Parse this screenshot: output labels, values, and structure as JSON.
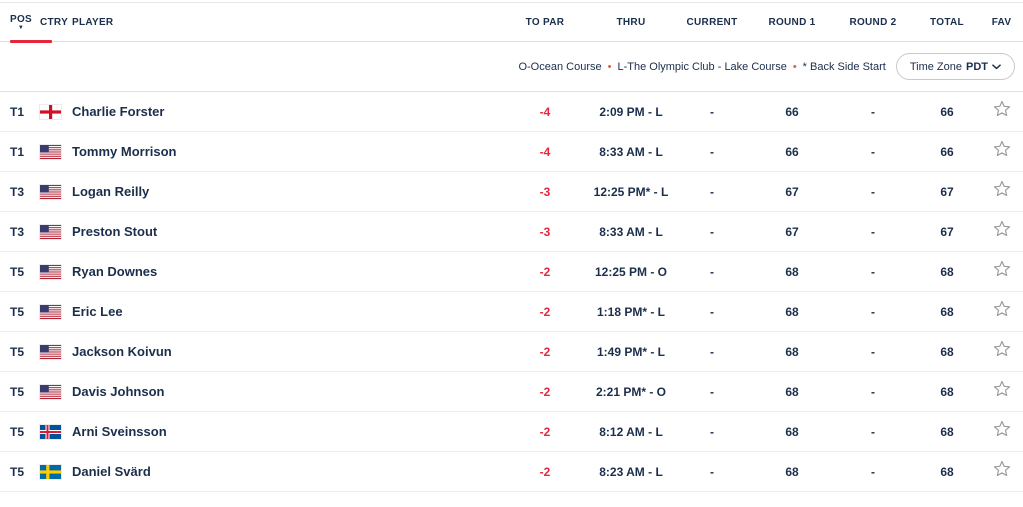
{
  "colors": {
    "navy": "#1b2e4b",
    "to_par_red": "#e8253c",
    "legend_bullet": "#d0614a",
    "star_outline": "#9b9b9b"
  },
  "header": {
    "columns": [
      "POS",
      "CTRY",
      "PLAYER",
      "TO PAR",
      "THRU",
      "CURRENT",
      "ROUND 1",
      "ROUND 2",
      "TOTAL",
      "FAV"
    ],
    "sorted_column": "POS"
  },
  "legend": {
    "items": [
      "O-Ocean Course",
      "L-The Olympic Club - Lake Course",
      "* Back Side Start"
    ],
    "timezone_label": "Time Zone",
    "timezone_value": "PDT"
  },
  "rows": [
    {
      "pos": "T1",
      "country": "ENG",
      "player": "Charlie Forster",
      "to_par": "-4",
      "thru": "2:09 PM - L",
      "current": "-",
      "round1": "66",
      "round2": "-",
      "total": "66"
    },
    {
      "pos": "T1",
      "country": "USA",
      "player": "Tommy Morrison",
      "to_par": "-4",
      "thru": "8:33 AM - L",
      "current": "-",
      "round1": "66",
      "round2": "-",
      "total": "66"
    },
    {
      "pos": "T3",
      "country": "USA",
      "player": "Logan Reilly",
      "to_par": "-3",
      "thru": "12:25 PM* - L",
      "current": "-",
      "round1": "67",
      "round2": "-",
      "total": "67"
    },
    {
      "pos": "T3",
      "country": "USA",
      "player": "Preston Stout",
      "to_par": "-3",
      "thru": "8:33 AM - L",
      "current": "-",
      "round1": "67",
      "round2": "-",
      "total": "67"
    },
    {
      "pos": "T5",
      "country": "USA",
      "player": "Ryan Downes",
      "to_par": "-2",
      "thru": "12:25 PM - O",
      "current": "-",
      "round1": "68",
      "round2": "-",
      "total": "68"
    },
    {
      "pos": "T5",
      "country": "USA",
      "player": "Eric Lee",
      "to_par": "-2",
      "thru": "1:18 PM* - L",
      "current": "-",
      "round1": "68",
      "round2": "-",
      "total": "68"
    },
    {
      "pos": "T5",
      "country": "USA",
      "player": "Jackson Koivun",
      "to_par": "-2",
      "thru": "1:49 PM* - L",
      "current": "-",
      "round1": "68",
      "round2": "-",
      "total": "68"
    },
    {
      "pos": "T5",
      "country": "USA",
      "player": "Davis Johnson",
      "to_par": "-2",
      "thru": "2:21 PM* - O",
      "current": "-",
      "round1": "68",
      "round2": "-",
      "total": "68"
    },
    {
      "pos": "T5",
      "country": "ISL",
      "player": "Arni Sveinsson",
      "to_par": "-2",
      "thru": "8:12 AM - L",
      "current": "-",
      "round1": "68",
      "round2": "-",
      "total": "68"
    },
    {
      "pos": "T5",
      "country": "SWE",
      "player": "Daniel Svärd",
      "to_par": "-2",
      "thru": "8:23 AM - L",
      "current": "-",
      "round1": "68",
      "round2": "-",
      "total": "68"
    }
  ]
}
